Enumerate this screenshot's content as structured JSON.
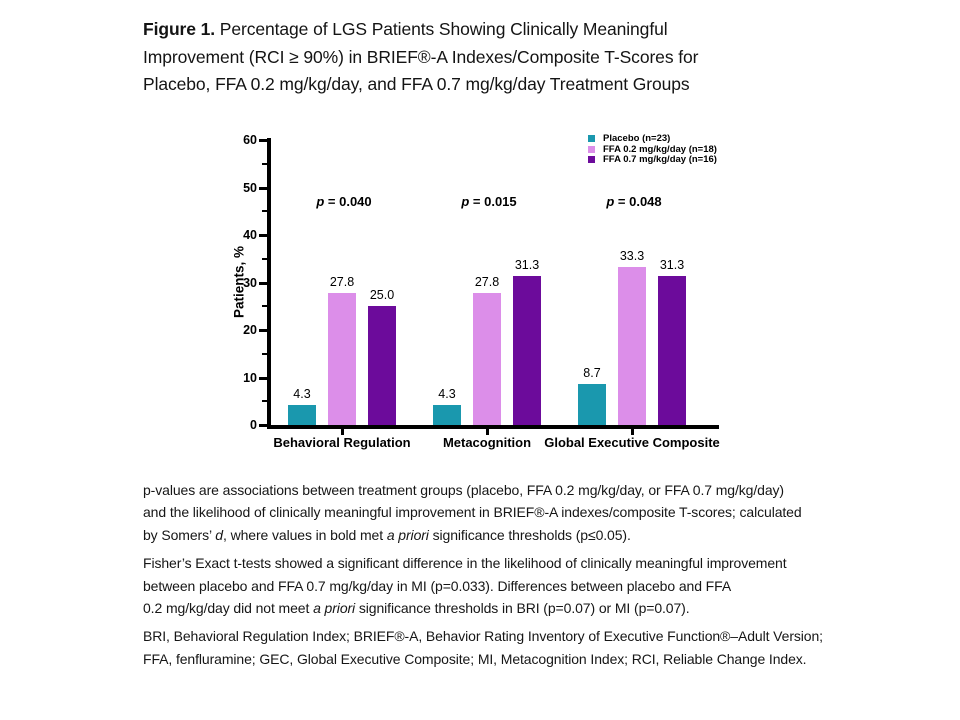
{
  "figure": {
    "title_bold": "Figure 1.",
    "title_line1_rest": " Percentage of LGS Patients Showing Clinically Meaningful",
    "title_line2": "Improvement (RCI ≥ 90%) in BRIEF®-A Indexes/Composite T-Scores for",
    "title_line3": "Placebo, FFA 0.2 mg/kg/day, and FFA 0.7 mg/kg/day Treatment Groups"
  },
  "chart_data": {
    "type": "bar",
    "title": "",
    "xlabel": "",
    "ylabel": "Patients, %",
    "ylim": [
      0,
      60
    ],
    "ytick_interval": 10,
    "yminor_interval": 5,
    "grid": false,
    "legend_position": "top-right",
    "categories": [
      "Behavioral Regulation",
      "Metacognition",
      "Global Executive Composite"
    ],
    "series": [
      {
        "name": "Placebo (n=23)",
        "color": "#1A98AE",
        "values": [
          4.3,
          4.3,
          8.7
        ],
        "value_labels": [
          "4.3",
          "4.3",
          "8.7"
        ]
      },
      {
        "name": "FFA 0.2 mg/kg/day (n=18)",
        "color": "#DC8EE9",
        "values": [
          27.8,
          27.8,
          33.3
        ],
        "value_labels": [
          "27.8",
          "27.8",
          "33.3"
        ]
      },
      {
        "name": "FFA 0.7 mg/kg/day (n=16)",
        "color": "#6C0B9B",
        "values": [
          25.0,
          31.3,
          31.3
        ],
        "value_labels": [
          "25.0",
          "31.3",
          "31.3"
        ]
      }
    ],
    "p_values": [
      {
        "symbol": "p",
        "rest": " = 0.040"
      },
      {
        "symbol": "p",
        "rest": " = 0.015"
      },
      {
        "symbol": "p",
        "rest": " = 0.048"
      }
    ]
  },
  "footnotes": [
    {
      "name": "footnote-pvalues",
      "lines": [
        [
          {
            "t": "p-values are associations between treatment groups (placebo, FFA 0.2 mg/kg/day, or FFA 0.7 mg/kg/day)"
          }
        ],
        [
          {
            "t": "and the likelihood of clinically meaningful improvement in BRIEF®-A indexes/composite T-scores; calculated"
          }
        ],
        [
          {
            "t": "by Somers’ "
          },
          {
            "t": "d",
            "i": true
          },
          {
            "t": ", where values in bold met "
          },
          {
            "t": "a priori",
            "i": true
          },
          {
            "t": " significance thresholds (p≤0.05)."
          }
        ]
      ]
    },
    {
      "name": "footnote-fishers",
      "lines": [
        [
          {
            "t": "Fisher’s Exact t-tests showed a significant difference in the likelihood of clinically meaningful improvement"
          }
        ],
        [
          {
            "t": "between placebo and FFA 0.7 mg/kg/day in MI (p=0.033). Differences between placebo and FFA"
          }
        ],
        [
          {
            "t": "0.2 mg/kg/day did not meet "
          },
          {
            "t": "a priori",
            "i": true
          },
          {
            "t": " significance thresholds in BRI (p=0.07) or MI (p=0.07)."
          }
        ]
      ]
    },
    {
      "name": "footnote-abbreviations",
      "lines": [
        [
          {
            "t": "BRI, Behavioral Regulation Index; BRIEF®-A, Behavior Rating Inventory of Executive Function®–Adult Version;"
          }
        ],
        [
          {
            "t": "FFA, fenfluramine; GEC, Global Executive Composite; MI, Metacognition Index; RCI, Reliable Change Index."
          }
        ]
      ]
    }
  ]
}
